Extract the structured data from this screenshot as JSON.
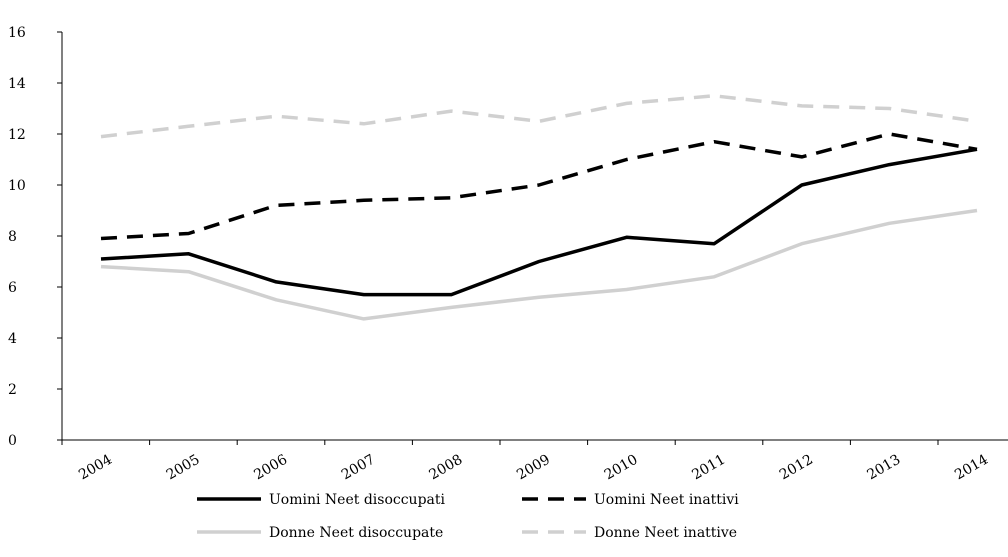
{
  "chart_data": {
    "type": "line",
    "title": "",
    "xlabel": "",
    "ylabel": "",
    "categories": [
      "2004",
      "2005",
      "2006",
      "2007",
      "2008",
      "2009",
      "2010",
      "2011",
      "2012",
      "2013",
      "2014"
    ],
    "ylim": [
      0,
      16
    ],
    "yticks": [
      0,
      2,
      4,
      6,
      8,
      10,
      12,
      14,
      16
    ],
    "grid": false,
    "legend_position": "bottom",
    "series": [
      {
        "name": "Uomini Neet disoccupati",
        "color": "#000000",
        "dash": "solid",
        "values": [
          7.1,
          7.3,
          6.2,
          5.7,
          5.7,
          7.0,
          7.95,
          7.7,
          10.0,
          10.8,
          11.4
        ]
      },
      {
        "name": "Uomini Neet inattivi",
        "color": "#000000",
        "dash": "dashed",
        "values": [
          7.9,
          8.1,
          9.2,
          9.4,
          9.5,
          10.0,
          11.0,
          11.7,
          11.1,
          12.0,
          11.4
        ]
      },
      {
        "name": "Donne Neet disoccupate",
        "color": "#d0d0d0",
        "dash": "solid",
        "values": [
          6.8,
          6.6,
          5.5,
          4.75,
          5.2,
          5.6,
          5.9,
          6.4,
          7.7,
          8.5,
          9.0
        ]
      },
      {
        "name": "Donne Neet inattive",
        "color": "#d0d0d0",
        "dash": "dashed",
        "values": [
          11.9,
          12.3,
          12.7,
          12.4,
          12.9,
          12.5,
          13.2,
          13.5,
          13.1,
          13.0,
          12.5
        ]
      }
    ]
  }
}
